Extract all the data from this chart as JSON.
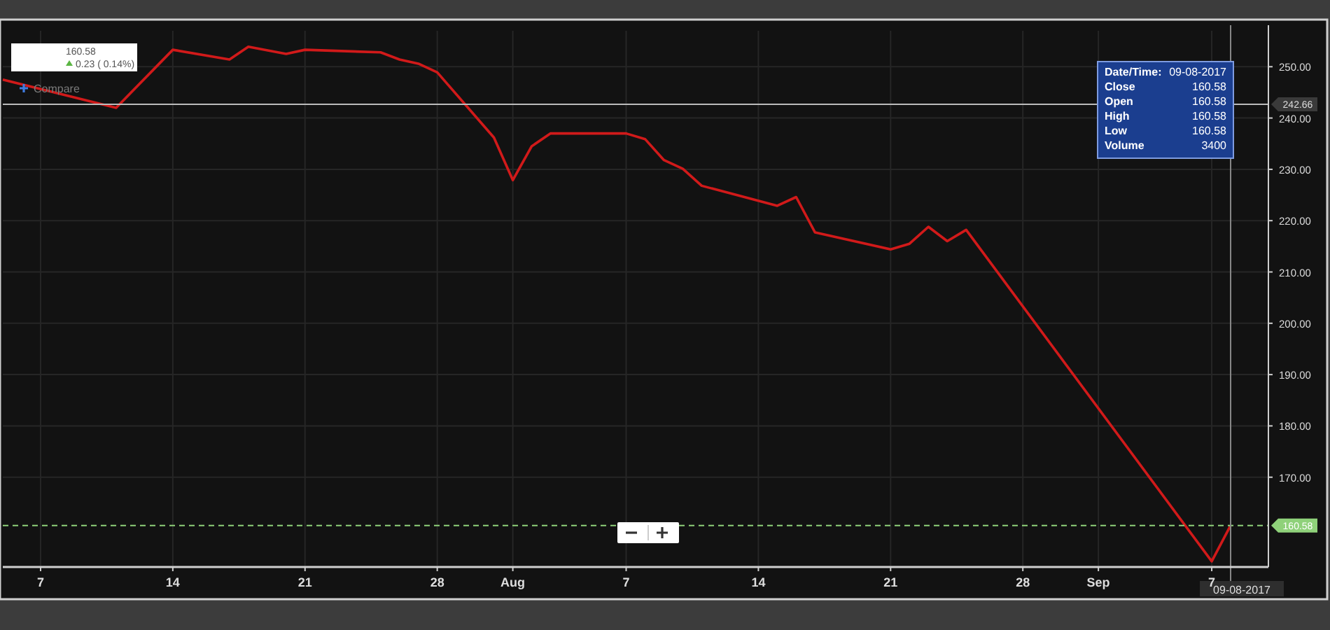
{
  "chart_data": {
    "type": "line",
    "x": [
      "2017-07-05",
      "2017-07-11",
      "2017-07-14",
      "2017-07-17",
      "2017-07-18",
      "2017-07-20",
      "2017-07-21",
      "2017-07-25",
      "2017-07-26",
      "2017-07-27",
      "2017-07-28",
      "2017-07-31",
      "2017-08-01",
      "2017-08-02",
      "2017-08-03",
      "2017-08-07",
      "2017-08-08",
      "2017-08-09",
      "2017-08-10",
      "2017-08-11",
      "2017-08-15",
      "2017-08-16",
      "2017-08-17",
      "2017-08-21",
      "2017-08-22",
      "2017-08-23",
      "2017-08-24",
      "2017-08-25",
      "2017-09-07",
      "2017-09-08"
    ],
    "series": [
      {
        "color": "#d11a1a",
        "values": [
          247.5,
          242.0,
          253.3,
          251.4,
          253.9,
          252.5,
          253.3,
          252.8,
          251.4,
          250.6,
          248.9,
          236.2,
          227.9,
          234.5,
          237.0,
          237.0,
          235.9,
          231.8,
          230.1,
          226.8,
          222.9,
          224.6,
          217.7,
          214.4,
          215.5,
          218.8,
          216.0,
          218.2,
          153.6,
          160.6
        ]
      }
    ],
    "xlim": [
      "2017-07-05",
      "2017-09-10"
    ],
    "xticks": [
      {
        "value": "2017-07-07",
        "label": "7"
      },
      {
        "value": "2017-07-14",
        "label": "14"
      },
      {
        "value": "2017-07-21",
        "label": "21"
      },
      {
        "value": "2017-07-28",
        "label": "28"
      },
      {
        "value": "2017-08-01",
        "label": "Aug"
      },
      {
        "value": "2017-08-07",
        "label": "7"
      },
      {
        "value": "2017-08-14",
        "label": "14"
      },
      {
        "value": "2017-08-21",
        "label": "21"
      },
      {
        "value": "2017-08-28",
        "label": "28"
      },
      {
        "value": "2017-09-01",
        "label": "Sep"
      },
      {
        "value": "2017-09-07",
        "label": "7"
      }
    ],
    "ylim": [
      152.5,
      257
    ],
    "yticks": [
      {
        "value": 170,
        "label": "170.00"
      },
      {
        "value": 180,
        "label": "180.00"
      },
      {
        "value": 190,
        "label": "190.00"
      },
      {
        "value": 200,
        "label": "200.00"
      },
      {
        "value": 210,
        "label": "210.00"
      },
      {
        "value": 220,
        "label": "220.00"
      },
      {
        "value": 230,
        "label": "230.00"
      },
      {
        "value": 240,
        "label": "240.00"
      },
      {
        "value": 250,
        "label": "250.00"
      }
    ],
    "grid": true,
    "marker": "none",
    "line_style": "solid",
    "ref_lines": [
      {
        "axis": "y",
        "value": 242.66,
        "label": "242.66",
        "color": "#bbbbbb",
        "line_style": "solid"
      },
      {
        "axis": "y",
        "value": 160.58,
        "label": "160.58",
        "color": "#8fd17a",
        "line_style": "dashed"
      },
      {
        "axis": "x",
        "value": "2017-09-08",
        "label": "09-08-2017",
        "color": "#888888",
        "line_style": "solid"
      }
    ],
    "annotations": [
      "160.58",
      "0.23 ( 0.14%)",
      "Compare",
      "Date/Time:",
      "09-08-2017",
      "Close",
      "160.58",
      "Open",
      "160.58",
      "High",
      "160.58",
      "Low",
      "160.58",
      "Volume",
      "3400"
    ]
  }
}
